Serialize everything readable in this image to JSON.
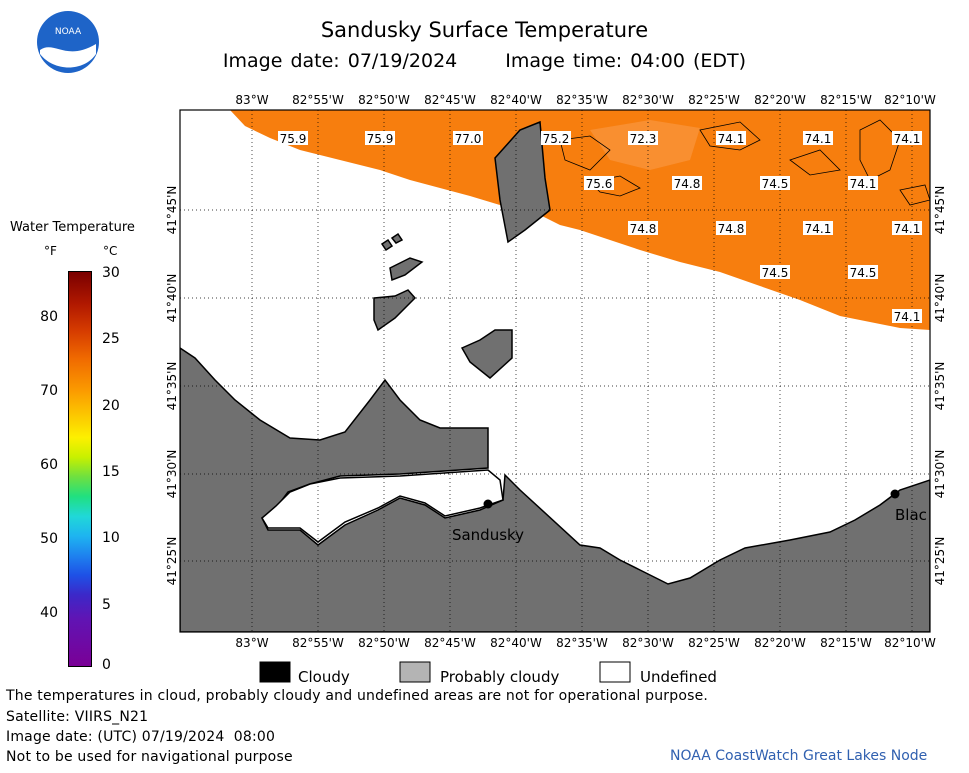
{
  "header": {
    "title": "Sandusky Surface Temperature",
    "image_date": "Image date: 07/19/2024",
    "image_time": "Image time: 04:00 (EDT)",
    "logo_text": "NOAA"
  },
  "legend": {
    "title": "Water Temperature",
    "unit_f": "°F",
    "unit_c": "°C",
    "f_ticks": [
      "80",
      "70",
      "60",
      "50",
      "40"
    ],
    "c_ticks": [
      "30",
      "25",
      "20",
      "15",
      "10",
      "5",
      "0"
    ]
  },
  "map": {
    "lon_labels": [
      "83°W",
      "82°55'W",
      "82°50'W",
      "82°45'W",
      "82°40'W",
      "82°35'W",
      "82°30'W",
      "82°25'W",
      "82°20'W",
      "82°15'W",
      "82°10'W"
    ],
    "lat_labels": [
      "41°45'N",
      "41°40'N",
      "41°35'N",
      "41°30'N",
      "41°25'N"
    ],
    "temps": [
      "75.9",
      "75.9",
      "77.0",
      "75.2",
      "72.3",
      "74.1",
      "74.1",
      "74.1",
      "75.6",
      "74.8",
      "74.5",
      "74.1",
      "74.8",
      "74.8",
      "74.1",
      "74.1",
      "74.5",
      "74.5",
      "74.1"
    ],
    "places": [
      "Sandusky",
      "Blac"
    ],
    "colors": {
      "water": "#f77e0e",
      "land": "#707070",
      "undefined": "#ffffff"
    }
  },
  "key": {
    "cloudy": "Cloudy",
    "probably_cloudy": "Probably cloudy",
    "undefined": "Undefined"
  },
  "footer": {
    "note": "The temperatures in cloud, probably cloudy and undefined areas are not for operational purpose.",
    "satellite": "Satellite: VIIRS_N21",
    "utc": "Image date: (UTC) 07/19/2024  08:00",
    "nav": "Not to be used for navigational purpose",
    "credit": "NOAA CoastWatch Great Lakes Node"
  }
}
